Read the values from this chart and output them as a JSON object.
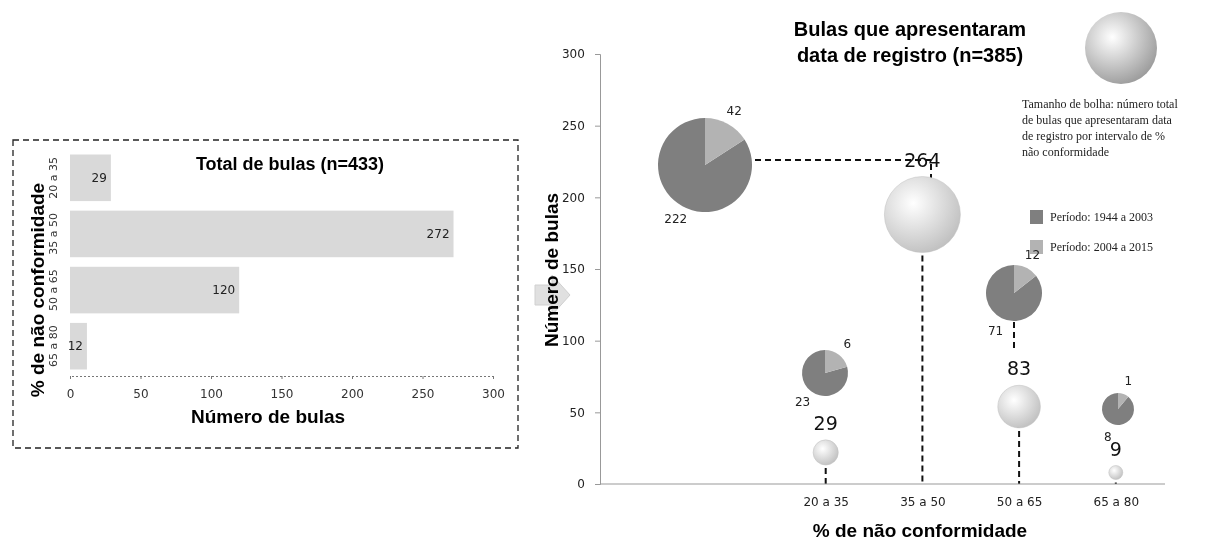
{
  "chart_data": [
    {
      "type": "bar",
      "orientation": "horizontal",
      "title": "Total de bulas (n=433)",
      "xlabel": "Número de bulas",
      "ylabel": "% de não conformidade",
      "categories": [
        "20 a 35",
        "35 a 50",
        "50 a 65",
        "65 a 80"
      ],
      "values": [
        29,
        272,
        120,
        12
      ],
      "color": "#d9d9d9",
      "xlim": [
        0,
        300
      ],
      "xticks": [
        0,
        50,
        100,
        150,
        200,
        250,
        300
      ],
      "data_labels": true,
      "grid": false
    },
    {
      "type": "bubble",
      "title": "Bulas que apresentaram data de registro (n=385)",
      "xlabel": "% de não conformidade",
      "ylabel": "Número de bulas",
      "categories": [
        null,
        "20 a 35",
        "35 a 50",
        "50 a 65",
        "65 a 80"
      ],
      "values": [
        null,
        22,
        188,
        54,
        8
      ],
      "sizes": [
        null,
        29,
        264,
        83,
        9
      ],
      "value_labels": [
        null,
        "29",
        "264",
        "83",
        "9"
      ],
      "color": "#bfbfbf",
      "ylim": [
        0,
        300
      ],
      "yticks": [
        0,
        50,
        100,
        150,
        200,
        250,
        300
      ],
      "annotations": [
        "Tamanho de bolha: número total de bulas que apresentaram data de registro por intervalo de % não conformidade"
      ],
      "grid": false
    },
    {
      "type": "pie",
      "categories": [
        "Período: 1944 a 2003",
        "Período: 2004 a 2015"
      ],
      "values": [
        222,
        42
      ],
      "colors": [
        "#7f7f7f",
        "#b3b3b3"
      ],
      "data_labels": true,
      "legend": "right"
    },
    {
      "type": "pie",
      "categories": [
        null,
        null
      ],
      "values": [
        23,
        6
      ],
      "colors": [
        "#7f7f7f",
        "#b3b3b3"
      ],
      "data_labels": true
    },
    {
      "type": "pie",
      "categories": [
        null,
        null
      ],
      "values": [
        71,
        12
      ],
      "colors": [
        "#7f7f7f",
        "#b3b3b3"
      ],
      "data_labels": true
    },
    {
      "type": "pie",
      "categories": [
        null,
        null
      ],
      "values": [
        8,
        1
      ],
      "colors": [
        "#7f7f7f",
        "#b3b3b3"
      ],
      "data_labels": true
    }
  ]
}
